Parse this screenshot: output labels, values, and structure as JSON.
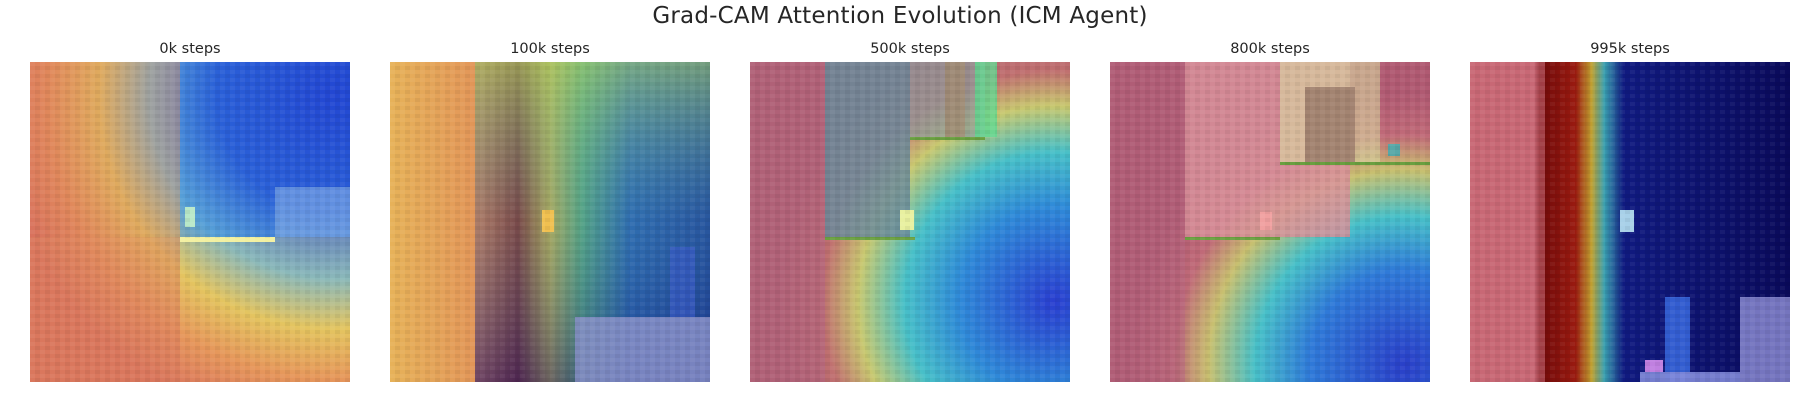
{
  "figure": {
    "title": "Grad-CAM Attention Evolution (ICM Agent)"
  },
  "panels": [
    {
      "title": "0k steps",
      "step": 0
    },
    {
      "title": "100k steps",
      "step": 100000
    },
    {
      "title": "500k steps",
      "step": 500000
    },
    {
      "title": "800k steps",
      "step": 800000
    },
    {
      "title": "995k steps",
      "step": 995000
    }
  ],
  "colors": {
    "colormap": "jet",
    "wall_overlay": "#b07a86",
    "sky_dark": "#1a1a66",
    "platform_green": "#6aa040"
  }
}
